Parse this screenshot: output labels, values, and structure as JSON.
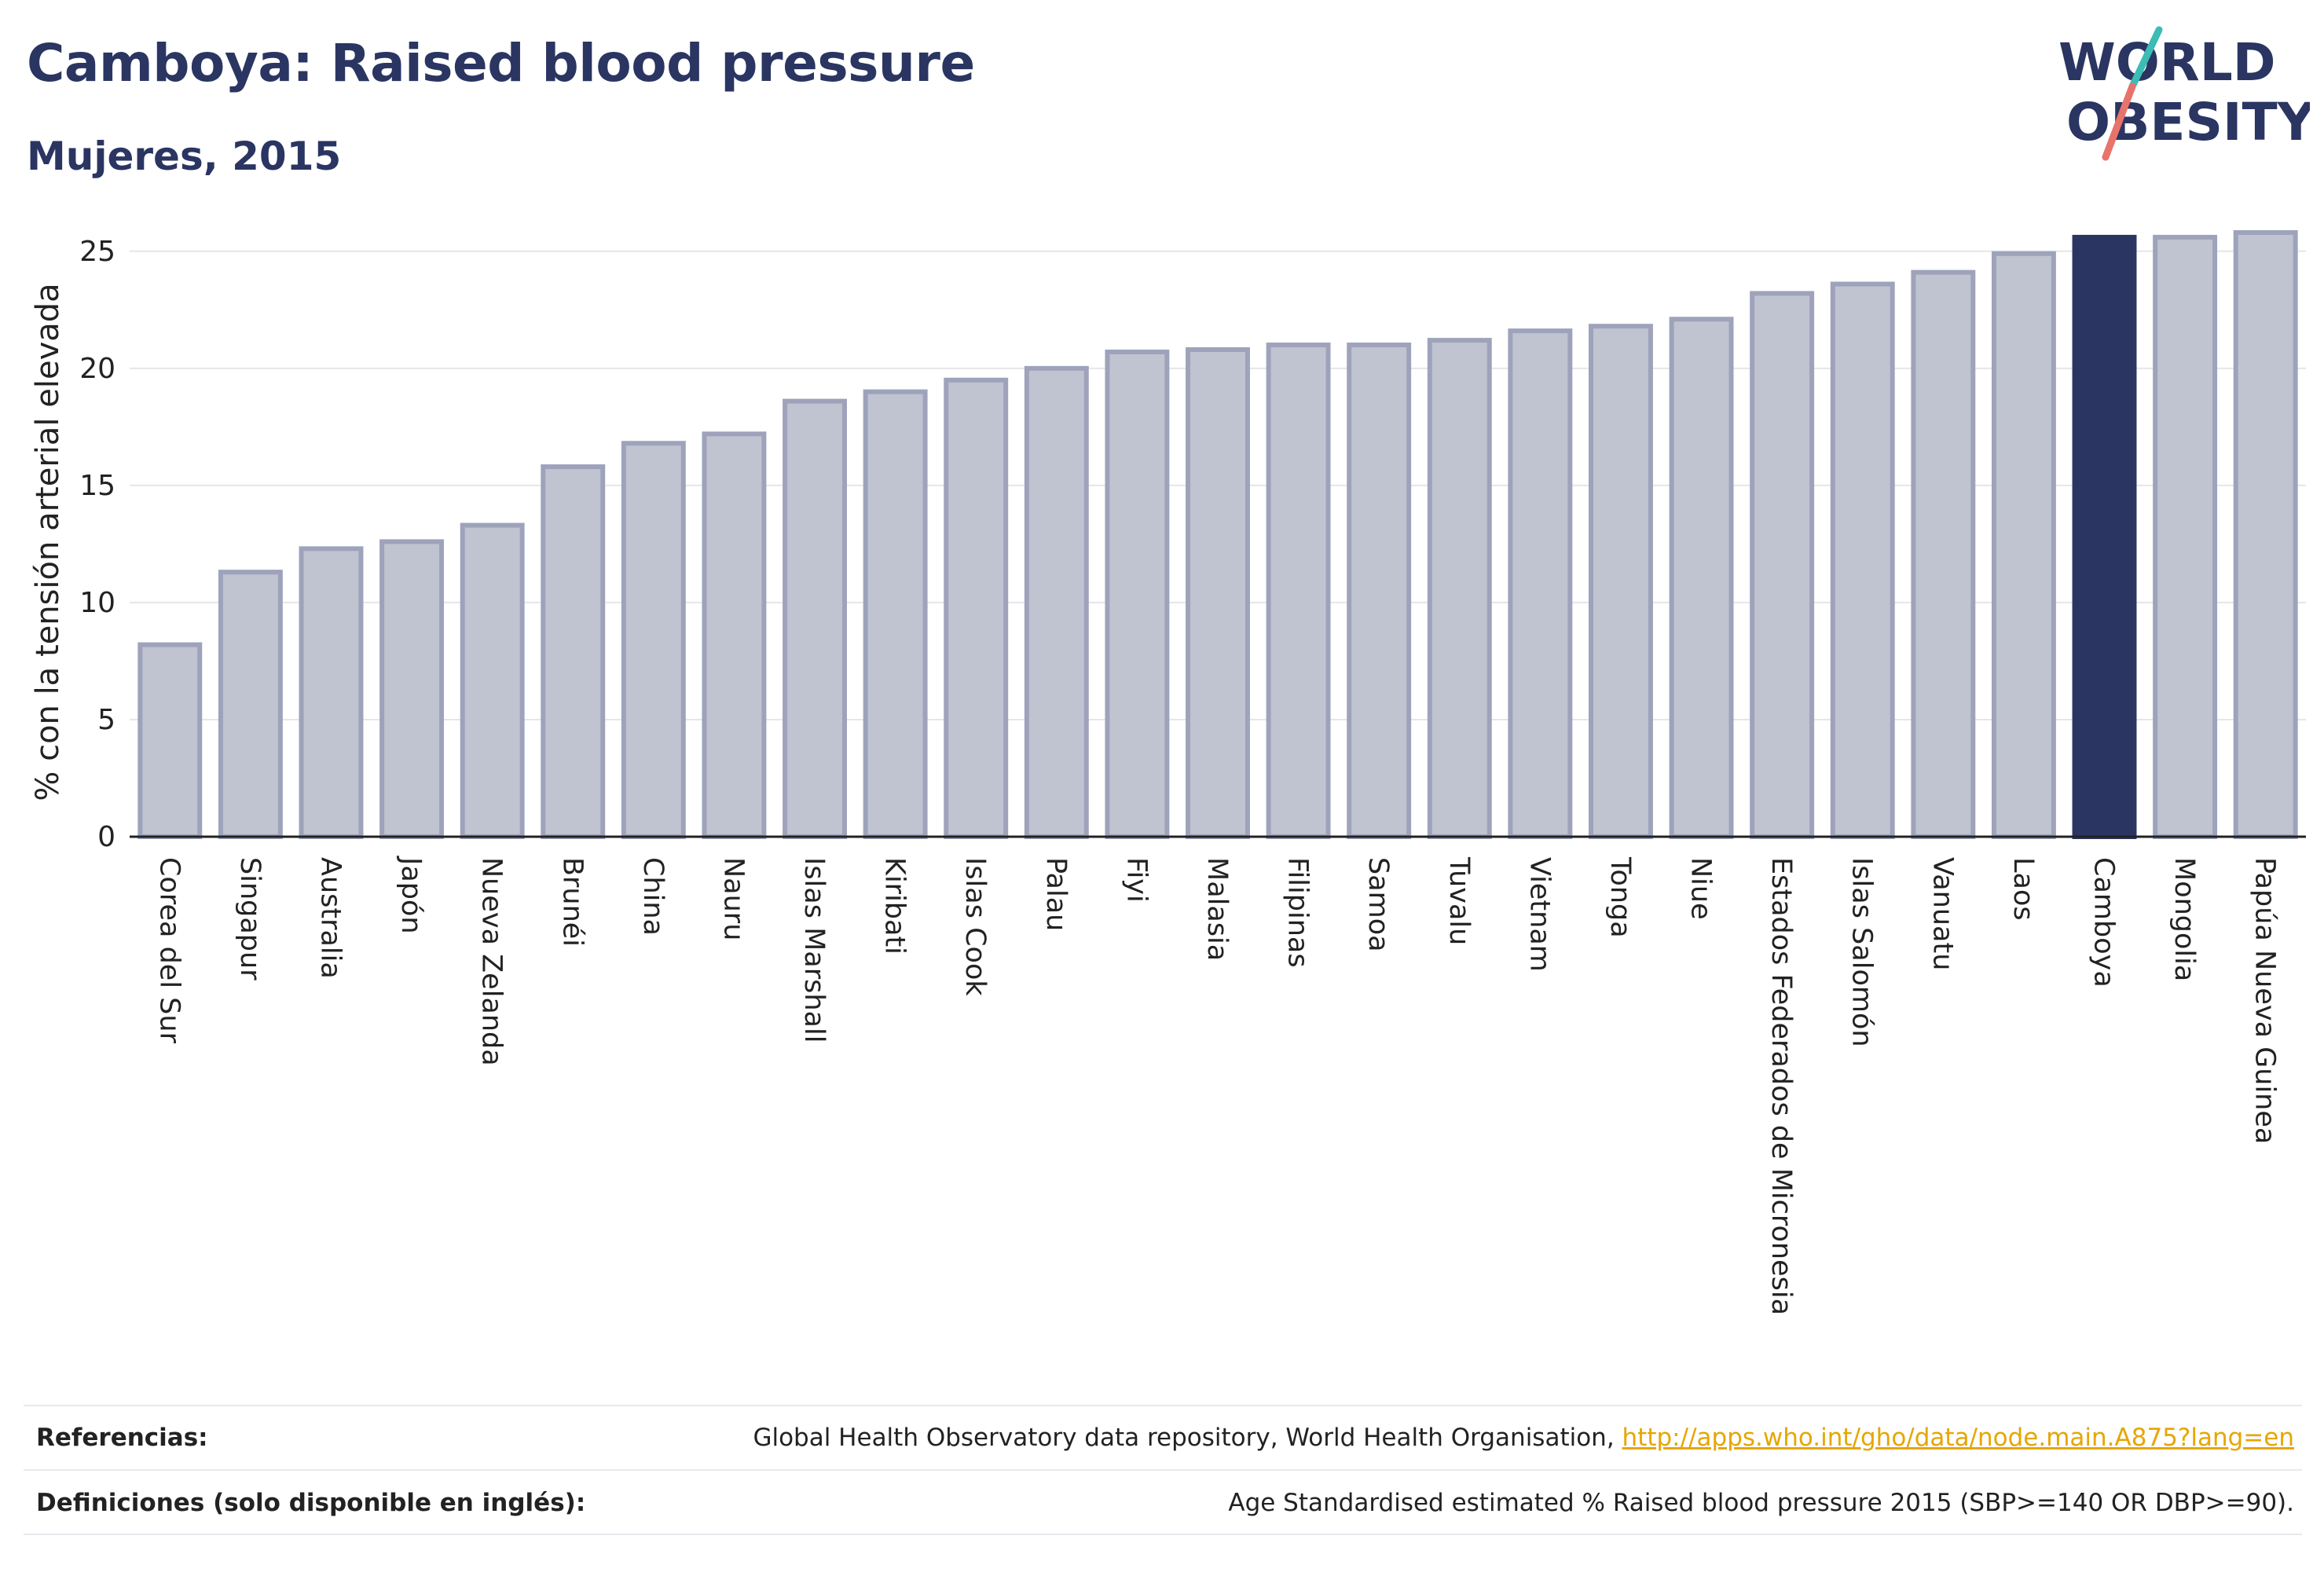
{
  "header": {
    "title": "Camboya: Raised blood pressure",
    "subtitle": "Mujeres, 2015"
  },
  "logo": {
    "line1": "WORLD",
    "line2": "OBESITY",
    "colors": {
      "text": "#2a3562",
      "slash_teal": "#3cbcb4",
      "slash_coral": "#e8736a"
    }
  },
  "colors": {
    "bar": "#c0c3d0",
    "bar_border": "#9ea3bb",
    "highlight": "#2a3562",
    "grid": "#e6e6ea"
  },
  "chart_data": {
    "type": "bar",
    "ylabel": "% con la tensión arterial elevada",
    "ylim": [
      0,
      26
    ],
    "yticks": [
      0,
      5,
      10,
      15,
      20,
      25
    ],
    "grid": true,
    "highlight": "Camboya",
    "categories": [
      "Corea del Sur",
      "Singapur",
      "Australia",
      "Japón",
      "Nueva Zelanda",
      "Brunéi",
      "China",
      "Nauru",
      "Islas Marshall",
      "Kiribati",
      "Islas Cook",
      "Palau",
      "Fiyi",
      "Malasia",
      "Filipinas",
      "Samoa",
      "Tuvalu",
      "Vietnam",
      "Tonga",
      "Niue",
      "Estados Federados de Micronesia",
      "Islas Salomón",
      "Vanuatu",
      "Laos",
      "Camboya",
      "Mongolia",
      "Papúa Nueva Guinea"
    ],
    "values": [
      8.2,
      11.3,
      12.3,
      12.6,
      13.3,
      15.8,
      16.8,
      17.2,
      18.6,
      19.0,
      19.5,
      20.0,
      20.7,
      20.8,
      21.0,
      21.0,
      21.2,
      21.6,
      21.8,
      22.1,
      23.2,
      23.6,
      24.1,
      24.9,
      25.6,
      25.6,
      25.8
    ]
  },
  "footer": {
    "references_label": "Referencias:",
    "references_text": "Global Health Observatory data repository, World Health Organisation, ",
    "references_link": "http://apps.who.int/gho/data/node.main.A875?lang=en",
    "definitions_label": "Definiciones (solo disponible en inglés):",
    "definitions_text": "Age Standardised estimated % Raised blood pressure 2015 (SBP>=140 OR DBP>=90)."
  }
}
